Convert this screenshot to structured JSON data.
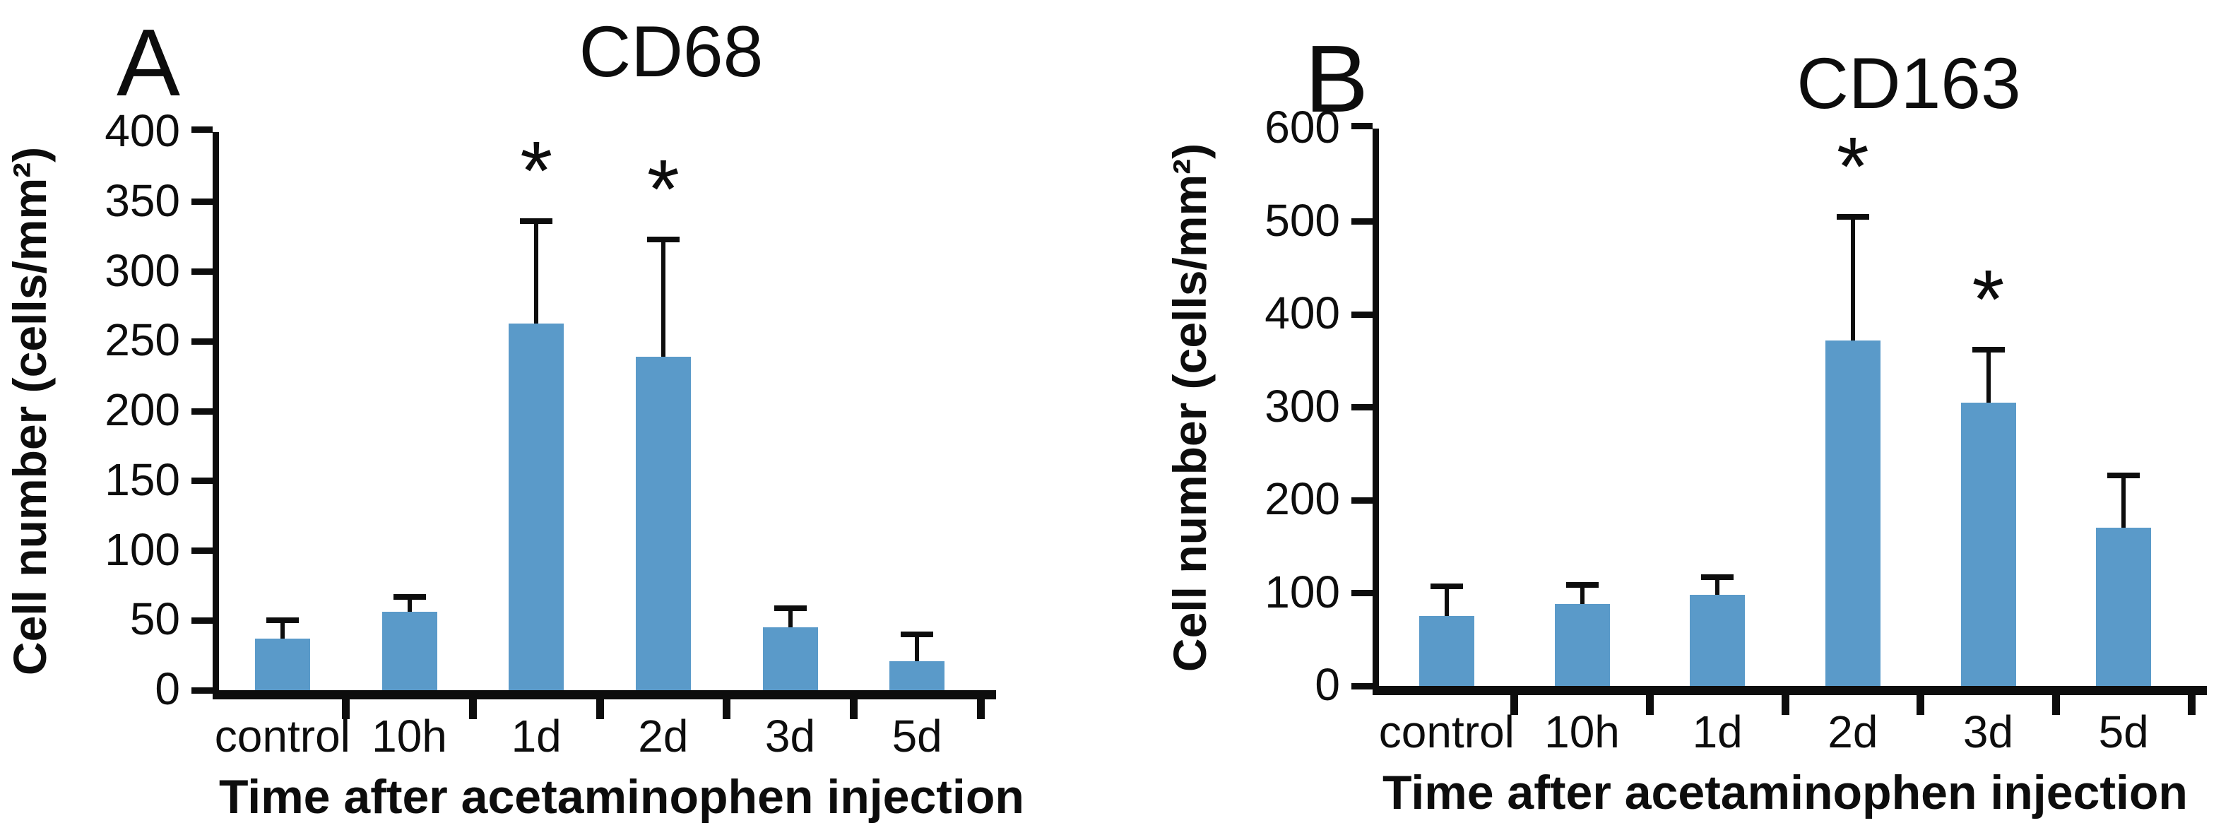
{
  "figure": {
    "background_color": "#ffffff",
    "text_color": "#0d0d0d"
  },
  "chart_data": [
    {
      "type": "bar",
      "panel_label": "A",
      "title": "CD68",
      "ylabel": "Cell number (cells/mm²)",
      "xlabel": "Time after acetaminophen injection",
      "categories": [
        "control",
        "10h",
        "1d",
        "2d",
        "3d",
        "5d"
      ],
      "values": [
        37,
        56,
        263,
        239,
        45,
        21
      ],
      "error_top": [
        52,
        69,
        338,
        325,
        61,
        42
      ],
      "significant": [
        false,
        false,
        true,
        true,
        false,
        false
      ],
      "significance_marker": "*",
      "ylim": [
        0,
        400
      ],
      "ytick_step": 50,
      "yticks": [
        400,
        350,
        300,
        250,
        200,
        150,
        100,
        50,
        0
      ],
      "bar_color": "#5a9ac9",
      "axis_color": "#0d0d0d",
      "grid": false,
      "legend_position": "none"
    },
    {
      "type": "bar",
      "panel_label": "B",
      "title": "CD163",
      "ylabel": "Cell number (cells/mm²)",
      "xlabel": "Time after acetaminophen injection",
      "categories": [
        "control",
        "10h",
        "1d",
        "2d",
        "3d",
        "5d"
      ],
      "values": [
        75,
        88,
        98,
        372,
        305,
        170
      ],
      "error_top": [
        110,
        112,
        120,
        508,
        365,
        230
      ],
      "significant": [
        false,
        false,
        false,
        true,
        true,
        false
      ],
      "significance_marker": "*",
      "ylim": [
        0,
        600
      ],
      "ytick_step": 100,
      "yticks": [
        600,
        500,
        400,
        300,
        200,
        100,
        0
      ],
      "bar_color": "#5a9ac9",
      "axis_color": "#0d0d0d",
      "grid": false,
      "legend_position": "none"
    }
  ]
}
